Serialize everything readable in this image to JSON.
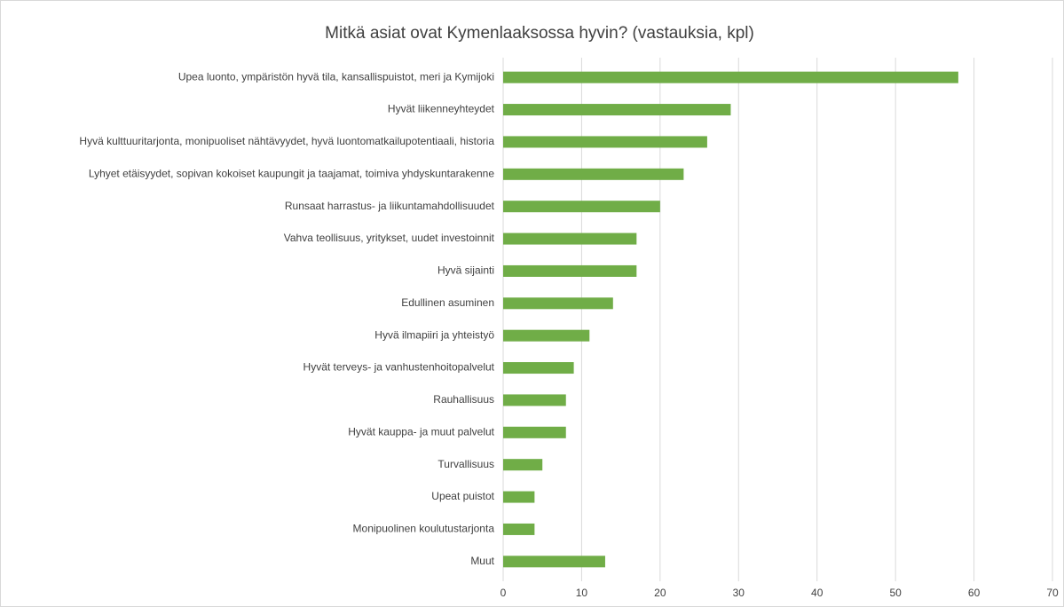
{
  "chart_data": {
    "type": "bar",
    "orientation": "horizontal",
    "title": "Mitkä asiat ovat Kymenlaaksossa hyvin? (vastauksia, kpl)",
    "categories": [
      "Upea luonto, ympäristön hyvä tila, kansallispuistot, meri ja Kymijoki",
      "Hyvät liikenneyhteydet",
      "Hyvä kulttuuritarjonta, monipuoliset nähtävyydet, hyvä luontomatkailupotentiaali, historia",
      "Lyhyet etäisyydet,  sopivan kokoiset kaupungit ja taajamat, toimiva yhdyskuntarakenne",
      "Runsaat harrastus- ja liikuntamahdollisuudet",
      "Vahva teollisuus, yritykset, uudet investoinnit",
      "Hyvä sijainti",
      "Edullinen asuminen",
      "Hyvä ilmapiiri ja yhteistyö",
      "Hyvät terveys- ja vanhustenhoitopalvelut",
      "Rauhallisuus",
      "Hyvät kauppa- ja muut palvelut",
      "Turvallisuus",
      "Upeat puistot",
      "Monipuolinen koulutustarjonta",
      "Muut"
    ],
    "values": [
      58,
      29,
      26,
      23,
      20,
      17,
      17,
      14,
      11,
      9,
      8,
      8,
      5,
      4,
      4,
      13
    ],
    "color": "#70ad47",
    "xlim": [
      0,
      70
    ],
    "xticks": [
      0,
      10,
      20,
      30,
      40,
      50,
      60,
      70
    ],
    "grid": true
  }
}
